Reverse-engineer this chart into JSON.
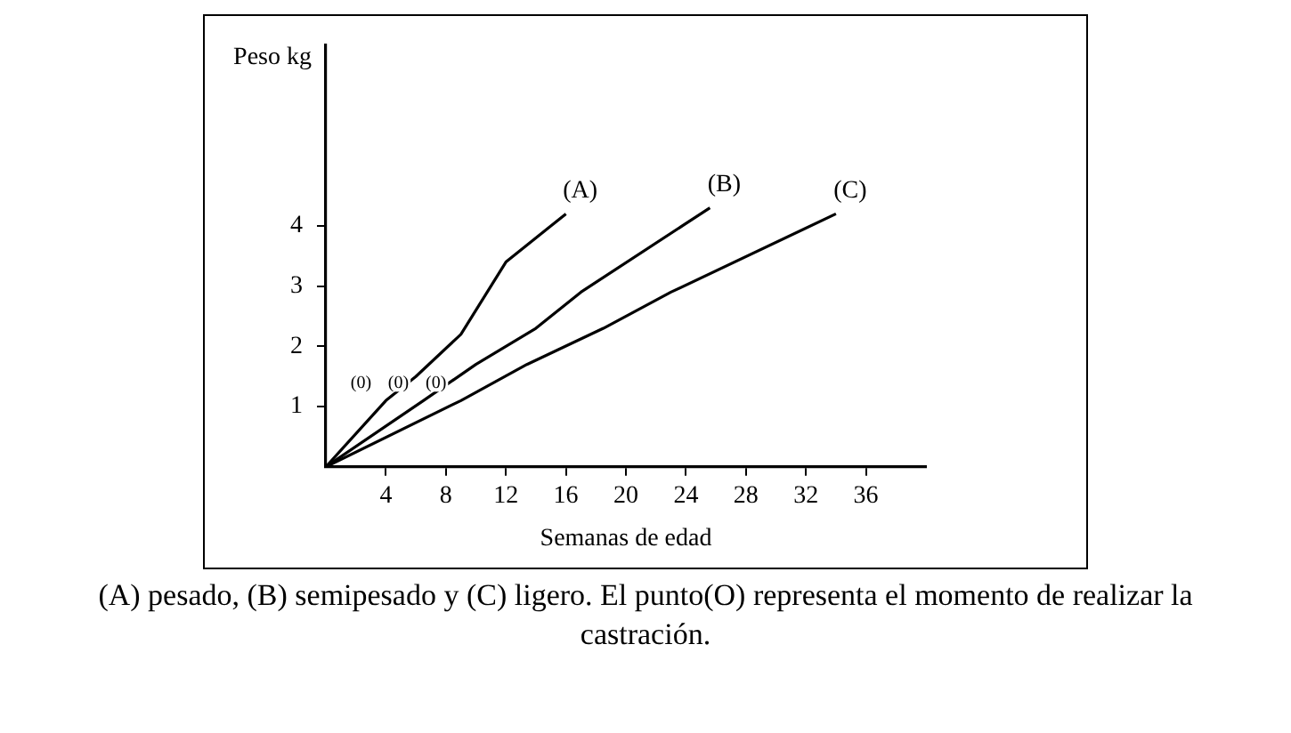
{
  "chart_data": {
    "type": "line",
    "xlabel": "Semanas de edad",
    "ylabel": "Peso kg",
    "xlim": [
      0,
      40
    ],
    "ylim": [
      0,
      7
    ],
    "xticks": [
      4,
      8,
      12,
      16,
      20,
      24,
      28,
      32,
      36
    ],
    "yticks": [
      1,
      2,
      3,
      4
    ],
    "series": [
      {
        "name": "(A)",
        "color": "#000000",
        "x": [
          0,
          4,
          6,
          9,
          12,
          16
        ],
        "values": [
          0,
          1.1,
          1.5,
          2.2,
          3.4,
          4.2
        ]
      },
      {
        "name": "(B)",
        "color": "#000000",
        "x": [
          0,
          6.5,
          10,
          14,
          17,
          25.6
        ],
        "values": [
          0,
          1.1,
          1.7,
          2.3,
          2.9,
          4.3
        ]
      },
      {
        "name": "(C)",
        "color": "#000000",
        "x": [
          0,
          9,
          13.4,
          18.5,
          23,
          34
        ],
        "values": [
          0,
          1.1,
          1.7,
          2.3,
          2.9,
          4.2
        ]
      }
    ],
    "annotations": [
      {
        "text": "(0)",
        "x": 4,
        "y": 1.1
      },
      {
        "text": "(0)",
        "x": 6.5,
        "y": 1.1
      },
      {
        "text": "(0)",
        "x": 9,
        "y": 1.1
      },
      "(A) pesado, (B) semipesado y (C) ligero. El punto(O) representa el momento de realizar la castración."
    ],
    "grid": false,
    "legend": false,
    "marker": "none",
    "line_style": "solid"
  }
}
